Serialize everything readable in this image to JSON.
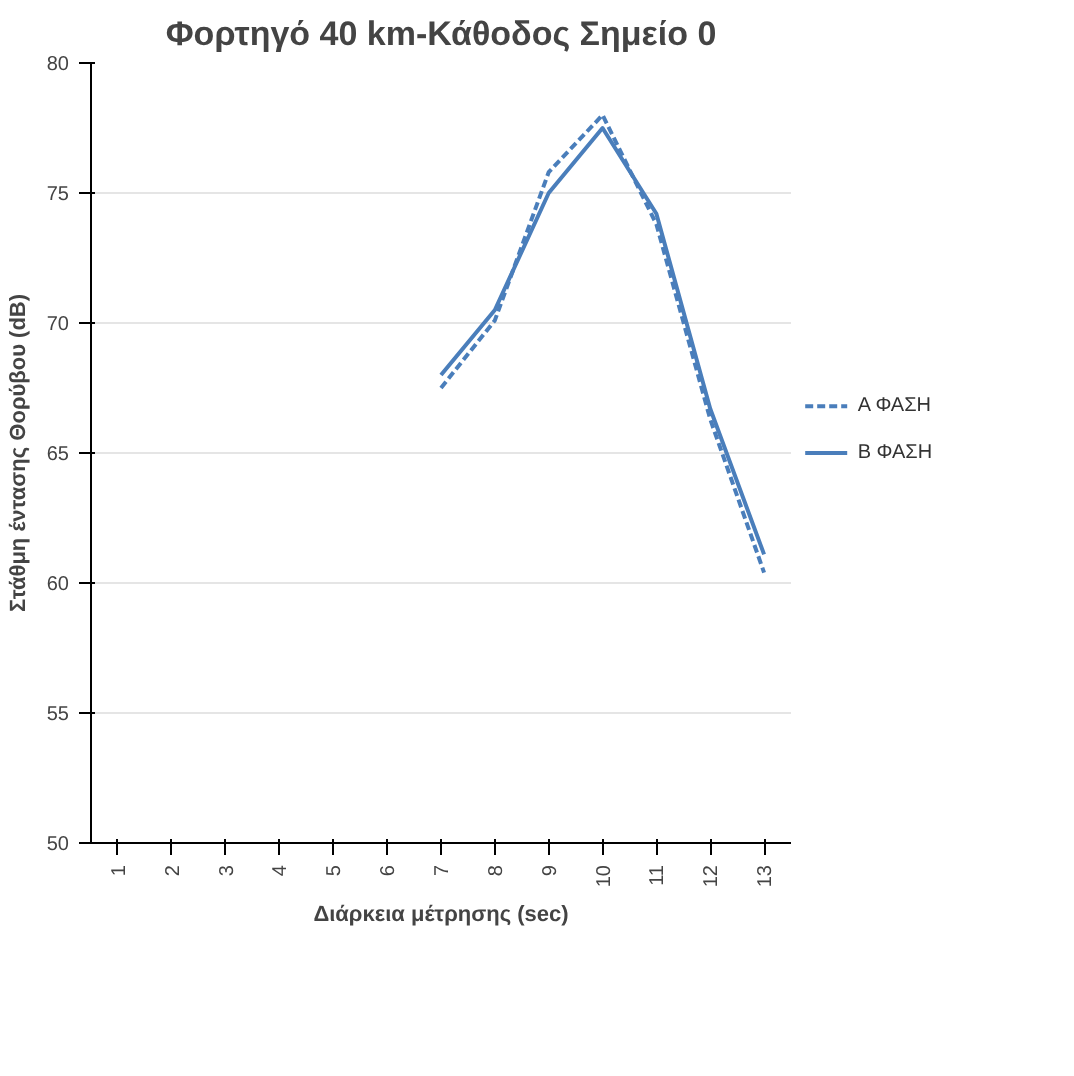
{
  "chart_data": {
    "type": "line",
    "title": "Φορτηγό 40 km-Κάθοδος Σημείο 0",
    "xlabel": "Διάρκεια μέτρησης (sec)",
    "ylabel": "Στάθμη έντασης Θορύβου (dB)",
    "categories": [
      "1",
      "2",
      "3",
      "4",
      "5",
      "6",
      "7",
      "8",
      "9",
      "10",
      "11",
      "12",
      "13"
    ],
    "series": [
      {
        "name": "Α ΦΑΣΗ",
        "color": "#4a7ebb",
        "line_style": "dashed",
        "values": [
          null,
          null,
          null,
          null,
          null,
          null,
          67.5,
          70.1,
          75.8,
          78.0,
          73.8,
          66.3,
          60.4
        ]
      },
      {
        "name": "Β ΦΑΣΗ",
        "color": "#4a7ebb",
        "line_style": "solid",
        "values": [
          null,
          null,
          null,
          null,
          null,
          null,
          68.0,
          70.5,
          75.0,
          77.5,
          74.2,
          66.7,
          61.1
        ]
      }
    ],
    "ylim": [
      50,
      80
    ],
    "yticks": [
      50,
      55,
      60,
      65,
      70,
      75,
      80
    ],
    "grid": "y",
    "legend": "right",
    "marker": "none"
  }
}
